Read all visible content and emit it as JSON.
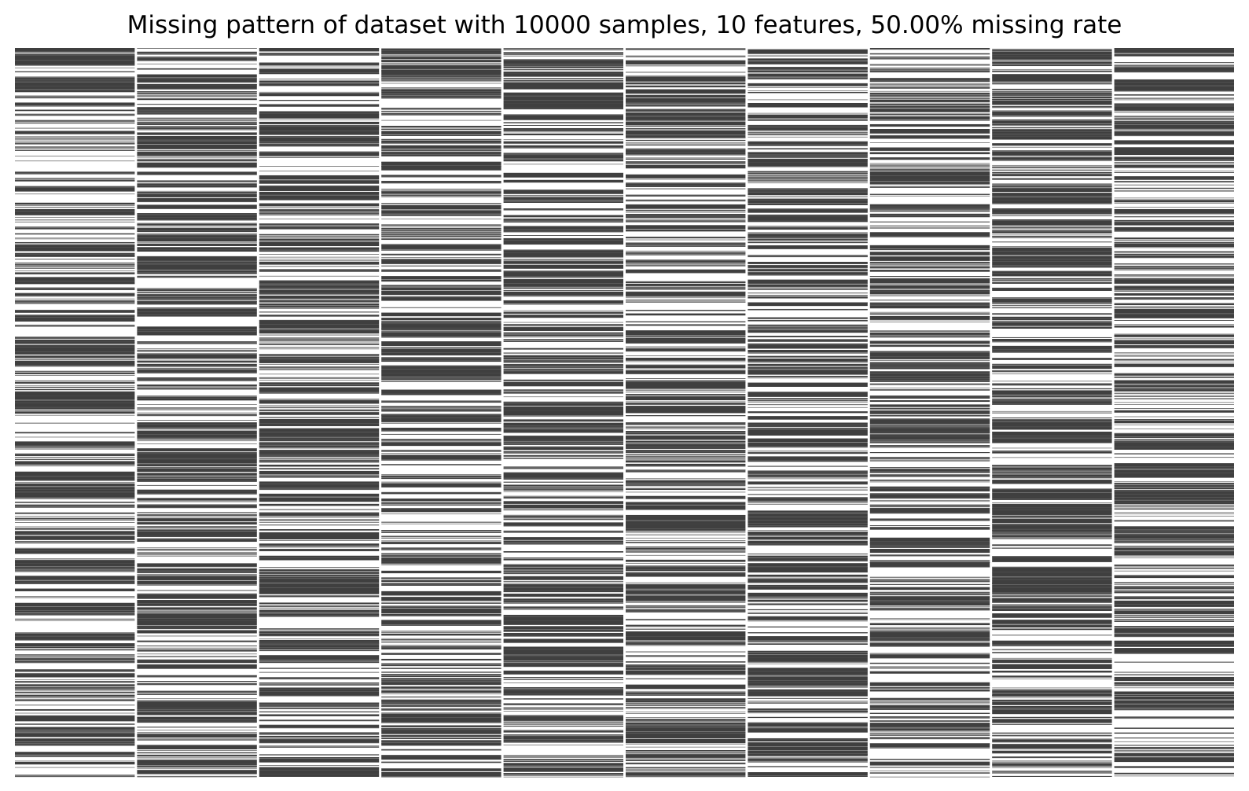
{
  "chart_data": {
    "type": "heatmap",
    "title": "Missing pattern of dataset with 10000 samples, 10 features, 50.00% missing rate",
    "n_samples": 10000,
    "n_features": 10,
    "missing_rate": 0.5,
    "columns": [
      "",
      "",
      "",
      "",
      "",
      "",
      "",
      "",
      "",
      ""
    ],
    "present_color": "#3f3f3f",
    "missing_color": "#ffffff",
    "axes_visible": false,
    "grid": false,
    "legend": "none",
    "xlabel": "",
    "ylabel": ""
  }
}
